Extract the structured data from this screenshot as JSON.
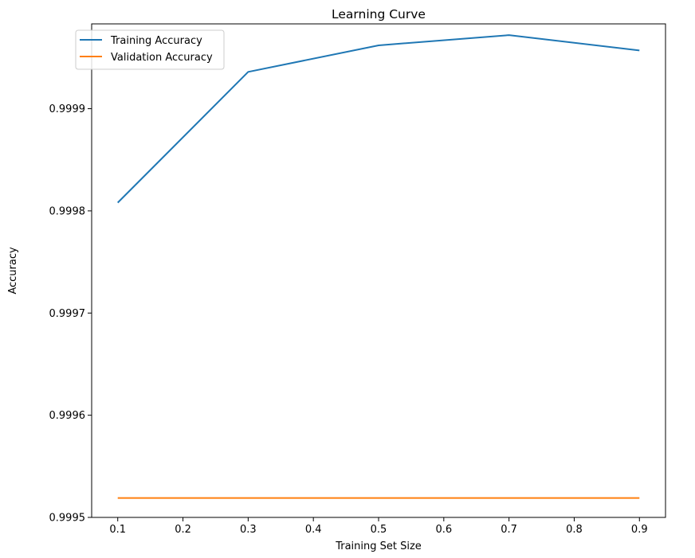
{
  "chart_data": {
    "type": "line",
    "title": "Learning Curve",
    "xlabel": "Training Set Size",
    "ylabel": "Accuracy",
    "x": [
      0.1,
      0.3,
      0.5,
      0.7,
      0.9
    ],
    "xlim": [
      0.06,
      0.94
    ],
    "ylim": [
      0.9995,
      0.999983
    ],
    "xticks": [
      0.1,
      0.2,
      0.3,
      0.4,
      0.5,
      0.6,
      0.7,
      0.8,
      0.9
    ],
    "xtick_labels": [
      "0.1",
      "0.2",
      "0.3",
      "0.4",
      "0.5",
      "0.6",
      "0.7",
      "0.8",
      "0.9"
    ],
    "yticks": [
      0.9995,
      0.9996,
      0.9997,
      0.9998,
      0.9999
    ],
    "ytick_labels": [
      "0.9995",
      "0.9996",
      "0.9997",
      "0.9998",
      "0.9999"
    ],
    "grid": false,
    "legend_position": "top-left",
    "series": [
      {
        "name": "Training Accuracy",
        "color": "#1f77b4",
        "values": [
          0.999808,
          0.999936,
          0.999962,
          0.999972,
          0.999957
        ]
      },
      {
        "name": "Validation Accuracy",
        "color": "#ff7f0e",
        "values": [
          0.999519,
          0.999519,
          0.999519,
          0.999519,
          0.999519
        ]
      }
    ]
  }
}
